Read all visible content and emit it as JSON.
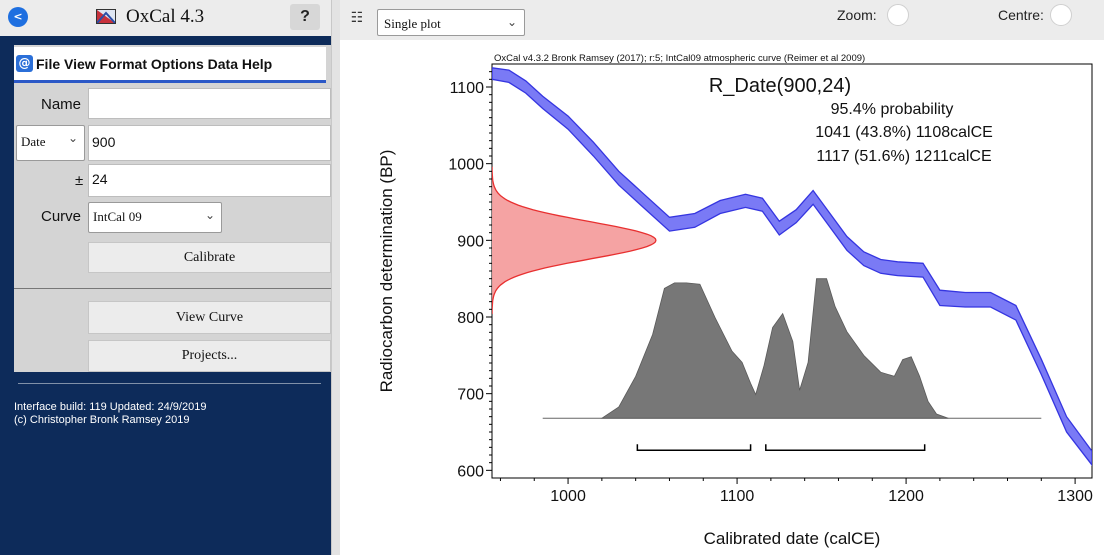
{
  "app": {
    "back_glyph": "<",
    "title": "OxCal 4.3",
    "help_label": "?"
  },
  "menu": {
    "at_glyph": "@",
    "text": "File View Format Options Data Help"
  },
  "form": {
    "name_label": "Name",
    "name_value": "",
    "date_type": "Date",
    "date_value": "900",
    "error_label": "±",
    "error_value": "24",
    "curve_label": "Curve",
    "curve_value": "IntCal 09",
    "calibrate_label": "Calibrate",
    "view_curve_label": "View Curve",
    "projects_label": "Projects..."
  },
  "footer": {
    "build_line1": "Interface build: 119 Updated: 24/9/2019",
    "build_line2": "(c) Christopher Bronk Ramsey 2019"
  },
  "toolbar": {
    "grid_glyph": "☷",
    "plot_mode": "Single plot",
    "zoom_label": "Zoom:",
    "centre_label": "Centre:"
  },
  "icons": {
    "back": "back-arrow-icon",
    "app": "oxcal-logo-icon",
    "menu": "at-icon",
    "grid": "grid-menu-icon",
    "chevron": "chevron-down-icon"
  },
  "colors": {
    "panel_bg": "#0d2b5a",
    "menu_accent": "#2b58c7",
    "curve_fill": "#7a7af5",
    "curve_edge": "#3535e0",
    "radiocarbon_fill": "#f5a3a3",
    "radiocarbon_edge": "#e83030",
    "posterior_fill": "#777777"
  },
  "chart_data": {
    "type": "area",
    "header": "OxCal v4.3.2 Bronk Ramsey (2017); r:5; IntCal09 atmospheric curve (Reimer et al 2009)",
    "title": "R_Date(900,24)",
    "annotations": [
      "95.4% probability",
      "1041 (43.8%) 1108calCE",
      "1117 (51.6%) 1211calCE"
    ],
    "xlabel": "Calibrated date (calCE)",
    "ylabel": "Radiocarbon determination (BP)",
    "xlim": [
      955,
      1310
    ],
    "ylim": [
      590,
      1130
    ],
    "x_ticks": [
      1000,
      1100,
      1200,
      1300
    ],
    "y_ticks": [
      600,
      700,
      800,
      900,
      1000,
      1100
    ],
    "calibration_curve": {
      "name": "IntCal09",
      "x": [
        955,
        965,
        975,
        985,
        1000,
        1015,
        1030,
        1045,
        1060,
        1075,
        1090,
        1105,
        1115,
        1125,
        1135,
        1145,
        1155,
        1165,
        1175,
        1185,
        1195,
        1210,
        1220,
        1235,
        1250,
        1265,
        1280,
        1295,
        1310
      ],
      "upper": [
        1125,
        1122,
        1108,
        1088,
        1062,
        1028,
        990,
        960,
        930,
        935,
        952,
        960,
        955,
        925,
        940,
        965,
        935,
        905,
        885,
        875,
        872,
        870,
        835,
        832,
        832,
        815,
        745,
        670,
        625
      ],
      "lower": [
        1110,
        1106,
        1092,
        1072,
        1045,
        1010,
        972,
        942,
        912,
        917,
        935,
        943,
        938,
        907,
        923,
        947,
        917,
        887,
        867,
        857,
        854,
        852,
        815,
        813,
        813,
        796,
        725,
        650,
        607
      ]
    },
    "radiocarbon_date": {
      "mean": 900,
      "sigma": 24,
      "baseline_x": 955,
      "peak_x": 1052
    },
    "posterior": {
      "baseline_bp": 668,
      "peak_bp": 850,
      "range": [
        985,
        1280
      ],
      "x": [
        1020,
        1030,
        1040,
        1050,
        1057,
        1063,
        1070,
        1078,
        1087,
        1097,
        1103,
        1108,
        1111,
        1116,
        1121,
        1127,
        1133,
        1137,
        1142,
        1147,
        1153,
        1158,
        1165,
        1175,
        1185,
        1193,
        1198,
        1203,
        1208,
        1213,
        1218,
        1225
      ],
      "y": [
        0,
        0.08,
        0.3,
        0.6,
        0.93,
        0.97,
        0.97,
        0.96,
        0.72,
        0.48,
        0.4,
        0.25,
        0.17,
        0.38,
        0.65,
        0.75,
        0.55,
        0.2,
        0.4,
        1.0,
        1.0,
        0.8,
        0.62,
        0.45,
        0.33,
        0.3,
        0.42,
        0.44,
        0.3,
        0.12,
        0.03,
        0
      ]
    },
    "ranges_95": [
      [
        1041,
        1108
      ],
      [
        1117,
        1211
      ]
    ]
  }
}
